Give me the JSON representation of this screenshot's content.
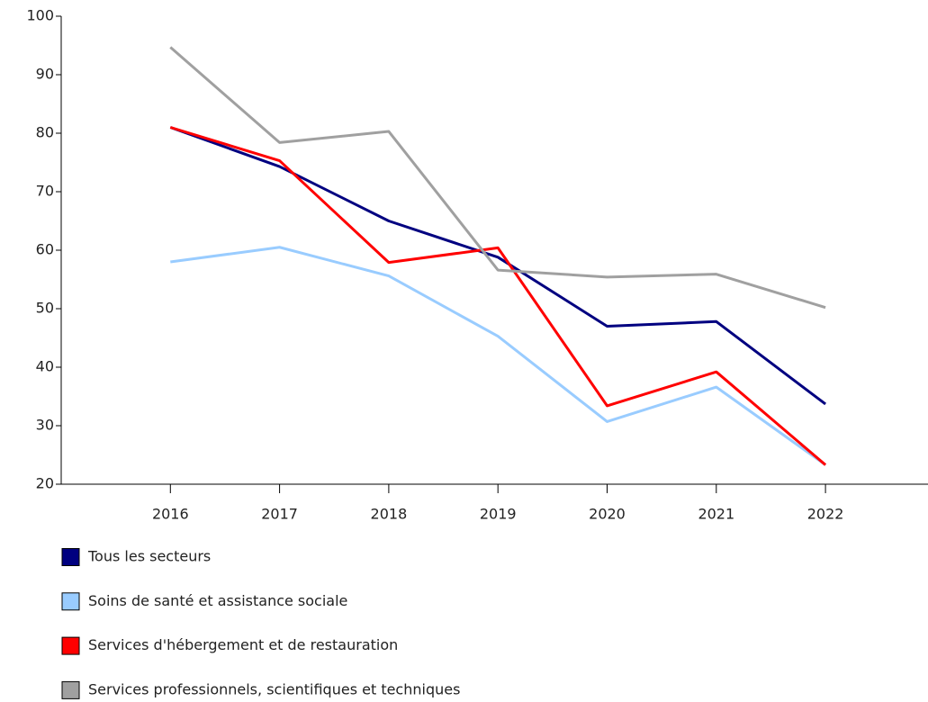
{
  "chart_data": {
    "type": "line",
    "categories": [
      "2016",
      "2017",
      "2018",
      "2019",
      "2020",
      "2021",
      "2022"
    ],
    "series": [
      {
        "name": "Tous les secteurs",
        "color": "#000080",
        "values": [
          81,
          74.3,
          65,
          58.8,
          47,
          47.8,
          33.7
        ]
      },
      {
        "name": "Soins de santé et assistance sociale",
        "color": "#99ccff",
        "values": [
          58,
          60.5,
          55.6,
          45.3,
          30.7,
          36.6,
          23.3
        ]
      },
      {
        "name": "Services d'hébergement et de restauration",
        "color": "#ff0000",
        "values": [
          81,
          75.3,
          57.9,
          60.4,
          33.4,
          39.2,
          23.3
        ]
      },
      {
        "name": "Services professionnels, scientifiques et techniques",
        "color": "#a0a0a0",
        "values": [
          94.7,
          78.4,
          80.3,
          56.6,
          55.4,
          55.9,
          50.2
        ]
      }
    ],
    "ylim": [
      20,
      100
    ],
    "yticks": [
      20,
      30,
      40,
      50,
      60,
      70,
      80,
      90,
      100
    ],
    "grid": false
  }
}
